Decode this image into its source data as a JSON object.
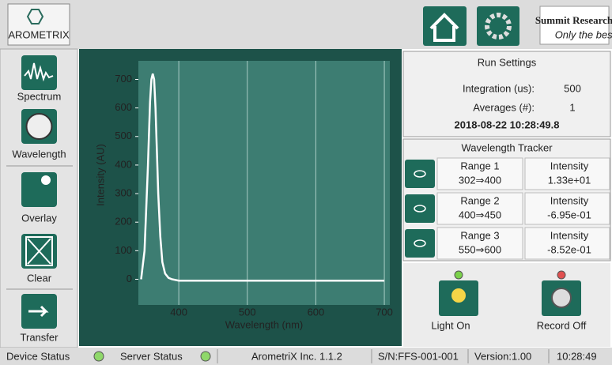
{
  "header": {
    "logo": "AROMETRIX",
    "partner": "Summit Research",
    "partner_tagline": "Only the best"
  },
  "sidebar": [
    "Spectrum",
    "Wavelength",
    "Overlay",
    "Clear",
    "Transfer"
  ],
  "chart_data": {
    "type": "line",
    "x_label": "Wavelength (nm)",
    "y_label": "Intensity (AU)",
    "x": [
      345,
      350,
      355,
      358,
      360,
      362,
      364,
      366,
      368,
      370,
      373,
      376,
      380,
      385,
      390,
      400,
      450,
      500,
      550,
      600,
      650,
      700
    ],
    "series": [
      {
        "color": "#ffffff",
        "values": [
          0,
          100,
          400,
          620,
          700,
          720,
          700,
          600,
          450,
          300,
          150,
          60,
          20,
          5,
          0,
          -5,
          -5,
          -5,
          -5,
          -5,
          -5,
          -5
        ]
      }
    ],
    "xlim": [
      341,
      708
    ],
    "ylim": [
      -90,
      765
    ],
    "xticks": [
      400,
      500,
      600,
      700
    ],
    "yticks": [
      0,
      100,
      200,
      300,
      400,
      500,
      600,
      700
    ],
    "grid": true
  },
  "run_settings": {
    "title": "Run Settings",
    "rows": [
      [
        "Integration (us):",
        "500"
      ],
      [
        "Averages (#):",
        "1"
      ]
    ],
    "timestamp": "2018-08-22 10:28:49.8"
  },
  "tracker": {
    "title": "Wavelength Tracker",
    "ranges": [
      {
        "name": "Range 1",
        "span": "302⇒400",
        "label": "Intensity",
        "value": "1.33e+01"
      },
      {
        "name": "Range 2",
        "span": "400⇒450",
        "label": "Intensity",
        "value": "-6.95e-01"
      },
      {
        "name": "Range 3",
        "span": "550⇒600",
        "label": "Intensity",
        "value": "-8.52e-01"
      }
    ]
  },
  "controls": [
    "Light On",
    "Record Off"
  ],
  "status": [
    "Device Status",
    "Server Status",
    "ArometriX Inc. 1.1.2",
    "S/N:FFS-001-001",
    "Version:1.00",
    "10:28:49"
  ]
}
